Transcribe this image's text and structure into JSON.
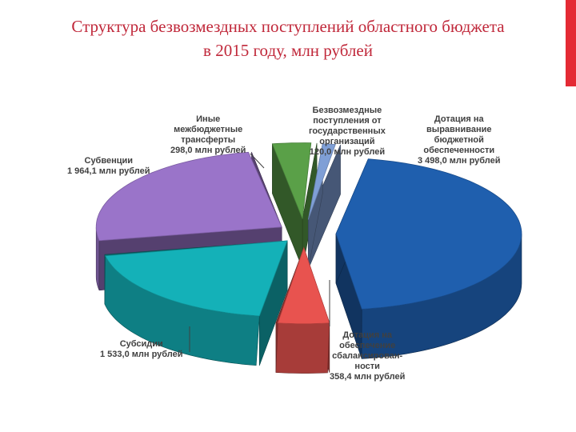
{
  "title_line1": "Структура безвозмездных поступлений областного бюджета",
  "title_line2": "в 2015 году, млн рублей",
  "colors": {
    "title": "#c0283a",
    "accent_bar": "#e42a34"
  },
  "chart_data": {
    "type": "pie",
    "title": "Структура безвозмездных поступлений областного бюджета в 2015 году, млн рублей",
    "style": "3d-exploded",
    "unit": "млн рублей",
    "slices": [
      {
        "label_lines": [
          "Дотация на",
          "выравнивание",
          "бюджетной",
          "обеспеченности"
        ],
        "value_text": "3 498,0 млн рублей",
        "value": 3498.0,
        "color": "#1f5fae"
      },
      {
        "label_lines": [
          "Дотация на",
          "обеспечение",
          "сбалансирован-",
          "ности"
        ],
        "value_text": "358,4 млн рублей",
        "value": 358.4,
        "color": "#e8534f"
      },
      {
        "label_lines": [
          "Субсидии"
        ],
        "value_text": "1 533,0 млн рублей",
        "value": 1533.0,
        "color": "#14b1b8"
      },
      {
        "label_lines": [
          "Субвенции"
        ],
        "value_text": "1 964,1 млн рублей",
        "value": 1964.1,
        "color": "#9a74c9"
      },
      {
        "label_lines": [
          "Иные",
          "межбюджетные",
          "трансферты"
        ],
        "value_text": "298,0 млн рублей",
        "value": 298.0,
        "color": "#5aa048"
      },
      {
        "label_lines": [
          "Безвозмездные",
          "поступления от",
          "государственных",
          "организаций"
        ],
        "value_text": "120,0 млн рублей",
        "value": 120.0,
        "color": "#7f9fd6"
      }
    ]
  }
}
